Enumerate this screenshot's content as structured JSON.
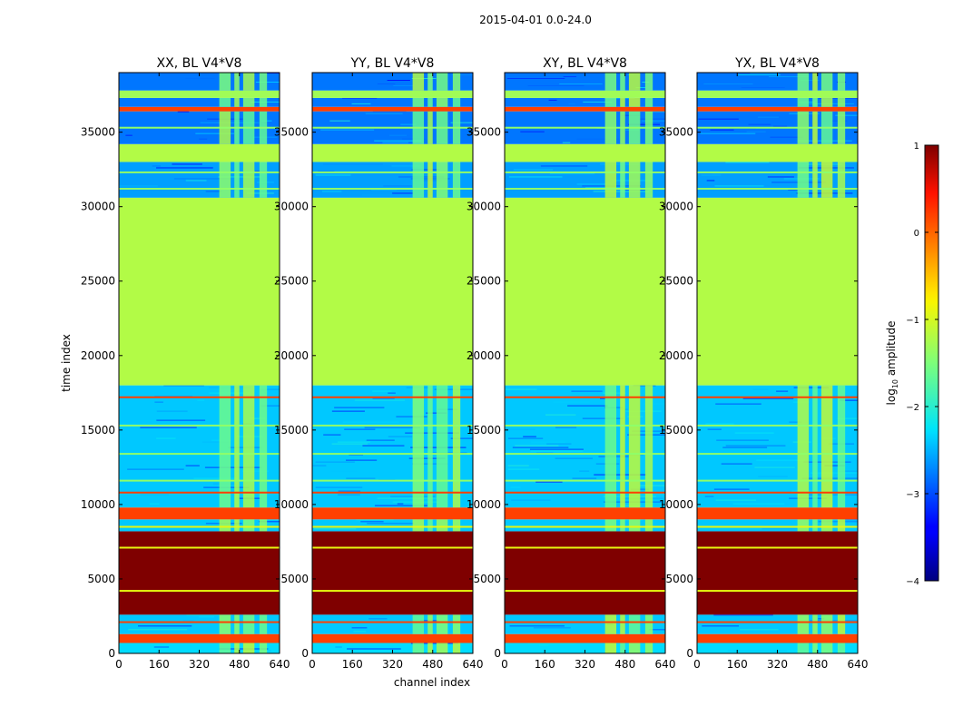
{
  "figure": {
    "suptitle": "2015-04-01 0.0-24.0",
    "ylabel": "time index",
    "xlabel": "channel index"
  },
  "chart_data": {
    "type": "heatmap",
    "colormap": "jet",
    "x_range": [
      0,
      640
    ],
    "y_range": [
      0,
      39000
    ],
    "xticks": [
      0,
      160,
      320,
      480,
      640
    ],
    "xtick_labels": [
      "0",
      "160",
      "320",
      "480",
      "640"
    ],
    "yticks": [
      0,
      5000,
      10000,
      15000,
      20000,
      25000,
      30000,
      35000
    ],
    "ytick_labels": [
      "0",
      "5000",
      "10000",
      "15000",
      "20000",
      "25000",
      "30000",
      "35000"
    ],
    "panels": [
      {
        "title": "XX, BL V4*V8"
      },
      {
        "title": "YY, BL V4*V8"
      },
      {
        "title": "XY, BL V4*V8"
      },
      {
        "title": "YX, BL V4*V8"
      }
    ],
    "row_bands": [
      {
        "y0": 0,
        "y1": 700,
        "value": -2.3,
        "kind": "noise"
      },
      {
        "y0": 700,
        "y1": 1300,
        "value": 0.2,
        "kind": "flag"
      },
      {
        "y0": 1300,
        "y1": 2600,
        "value": -2.4,
        "kind": "noise"
      },
      {
        "y0": 2600,
        "y1": 8200,
        "value": 1.0,
        "kind": "flag"
      },
      {
        "y0": 8200,
        "y1": 9000,
        "value": -2.4,
        "kind": "noise"
      },
      {
        "y0": 9000,
        "y1": 9800,
        "value": 0.2,
        "kind": "flag"
      },
      {
        "y0": 9800,
        "y1": 18000,
        "value": -2.4,
        "kind": "noise"
      },
      {
        "y0": 18000,
        "y1": 30600,
        "value": -1.2,
        "kind": "flag"
      },
      {
        "y0": 30600,
        "y1": 33000,
        "value": -2.6,
        "kind": "noise"
      },
      {
        "y0": 33000,
        "y1": 34200,
        "value": -1.2,
        "kind": "flag"
      },
      {
        "y0": 34200,
        "y1": 36400,
        "value": -2.8,
        "kind": "noise"
      },
      {
        "y0": 36400,
        "y1": 36700,
        "value": 0.2,
        "kind": "flag"
      },
      {
        "y0": 36700,
        "y1": 37300,
        "value": -2.8,
        "kind": "noise"
      },
      {
        "y0": 37300,
        "y1": 37800,
        "value": -1.3,
        "kind": "flag"
      },
      {
        "y0": 37800,
        "y1": 39000,
        "value": -2.8,
        "kind": "noise"
      }
    ],
    "thin_lines": [
      {
        "y": 2100,
        "value": 0.2
      },
      {
        "y": 4200,
        "value": -0.9
      },
      {
        "y": 7100,
        "value": -0.9
      },
      {
        "y": 8500,
        "value": -0.9
      },
      {
        "y": 17200,
        "value": 0.2
      },
      {
        "y": 15300,
        "value": -1.4
      },
      {
        "y": 13400,
        "value": -1.4
      },
      {
        "y": 11600,
        "value": -1.4
      },
      {
        "y": 10800,
        "value": 0.2
      },
      {
        "y": 31200,
        "value": -1.4
      },
      {
        "y": 32300,
        "value": -1.4
      },
      {
        "y": 35300,
        "value": -1.4
      }
    ],
    "rfi_channel_bands": [
      {
        "x0": 400,
        "x1": 445,
        "value": -1.4
      },
      {
        "x0": 460,
        "x1": 480,
        "value": -1.4
      },
      {
        "x0": 495,
        "x1": 540,
        "value": -1.4
      },
      {
        "x0": 560,
        "x1": 590,
        "value": -1.4
      }
    ],
    "colorbar": {
      "label": "log",
      "label_sub": "10",
      "label_rest": " amplitude",
      "range": [
        -4,
        1
      ],
      "ticks": [
        1,
        0,
        -1,
        -2,
        -3,
        -4
      ],
      "tick_labels": [
        "1",
        "0",
        "−1",
        "−2",
        "−3",
        "−4"
      ]
    }
  }
}
